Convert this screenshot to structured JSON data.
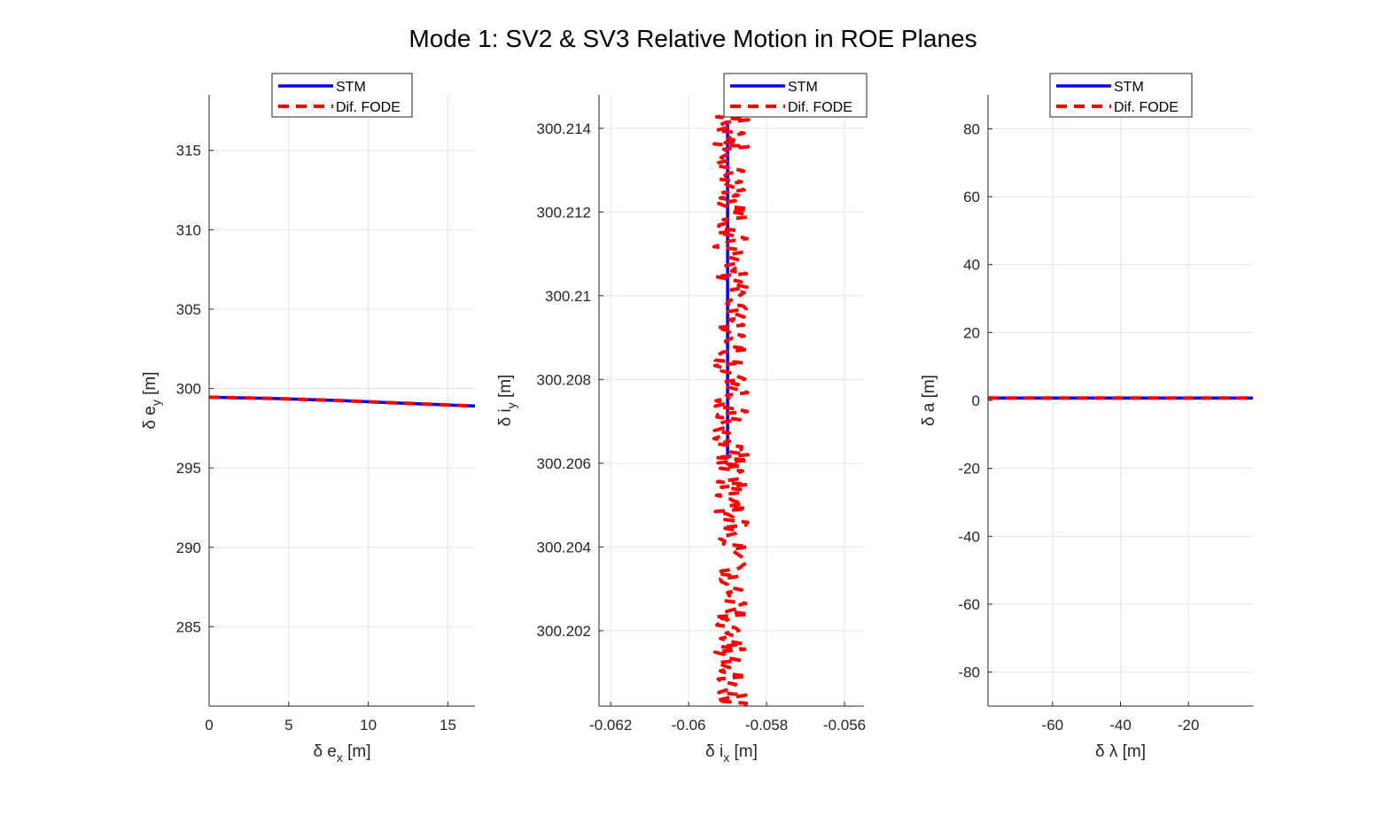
{
  "figure": {
    "title": "Mode 1: SV2 & SV3 Relative Motion in ROE Planes"
  },
  "colors": {
    "stm": "#0000ff",
    "fode": "#ff0000",
    "grid": "#e3e3e3",
    "axis": "#262626"
  },
  "chart_data": [
    {
      "type": "line",
      "panel": "left",
      "xlabel": "δ e_x [m]",
      "ylabel": "δ e_y [m]",
      "xlim": [
        0,
        16.7
      ],
      "ylim": [
        280,
        318.5
      ],
      "xticks": [
        0,
        5,
        10,
        15
      ],
      "xtick_labels": [
        "0",
        "5",
        "10",
        "15"
      ],
      "yticks": [
        285,
        290,
        295,
        300,
        305,
        310,
        315
      ],
      "ytick_labels": [
        "285",
        "290",
        "295",
        "300",
        "305",
        "310",
        "315"
      ],
      "grid": true,
      "legend": {
        "placement": "top-center",
        "entries": [
          "STM",
          "Dif. FODE"
        ]
      },
      "series": [
        {
          "name": "STM",
          "style": "solid",
          "x": [
            0,
            4,
            8,
            12,
            16.7
          ],
          "y": [
            299.45,
            299.38,
            299.25,
            299.08,
            298.9
          ]
        },
        {
          "name": "Dif. FODE",
          "style": "dashed",
          "x": [
            0,
            4,
            8,
            12,
            16.7
          ],
          "y": [
            299.45,
            299.38,
            299.25,
            299.08,
            298.9
          ]
        }
      ]
    },
    {
      "type": "line",
      "panel": "middle",
      "xlabel": "δ i_x [m]",
      "ylabel": "δ i_y [m]",
      "xlim": [
        -0.0623,
        -0.0555
      ],
      "ylim": [
        300.2002,
        300.2148
      ],
      "xticks": [
        -0.062,
        -0.06,
        -0.058,
        -0.056
      ],
      "xtick_labels": [
        "-0.062",
        "-0.06",
        "-0.058",
        "-0.056"
      ],
      "yticks": [
        300.202,
        300.204,
        300.206,
        300.208,
        300.21,
        300.212,
        300.214
      ],
      "ytick_labels": [
        "300.202",
        "300.204",
        "300.206",
        "300.208",
        "300.21",
        "300.212",
        "300.214"
      ],
      "grid": true,
      "legend": {
        "placement": "top-right",
        "entries": [
          "STM",
          "Dif. FODE"
        ]
      },
      "series": [
        {
          "name": "STM",
          "style": "solid",
          "x": [
            -0.059,
            -0.059
          ],
          "y": [
            300.2061,
            300.2141
          ]
        },
        {
          "name": "Dif. FODE",
          "style": "dashed",
          "x_center": -0.0589,
          "x_spread": 0.00045,
          "y_range": [
            300.2002,
            300.2144
          ]
        }
      ]
    },
    {
      "type": "line",
      "panel": "right",
      "xlabel": "δ λ [m]",
      "ylabel": "δ a [m]",
      "xlim": [
        -79,
        -1
      ],
      "ylim": [
        -90,
        90
      ],
      "xticks": [
        -60,
        -40,
        -20
      ],
      "xtick_labels": [
        "-60",
        "-40",
        "-20"
      ],
      "yticks": [
        -80,
        -60,
        -40,
        -20,
        0,
        20,
        40,
        60,
        80
      ],
      "ytick_labels": [
        "-80",
        "-60",
        "-40",
        "-20",
        "0",
        "20",
        "40",
        "60",
        "80"
      ],
      "grid": true,
      "legend": {
        "placement": "top-center",
        "entries": [
          "STM",
          "Dif. FODE"
        ]
      },
      "series": [
        {
          "name": "STM",
          "style": "solid",
          "x": [
            -79,
            -1
          ],
          "y": [
            0.7,
            0.7
          ]
        },
        {
          "name": "Dif. FODE",
          "style": "dashed",
          "x": [
            -79,
            -1
          ],
          "y": [
            0.7,
            0.7
          ]
        }
      ]
    }
  ]
}
